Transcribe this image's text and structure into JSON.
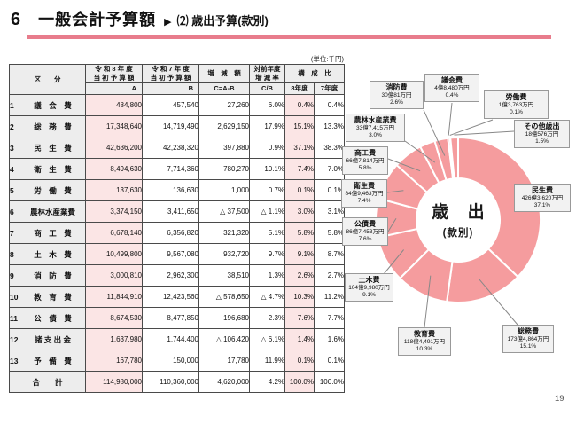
{
  "page": {
    "title_no": "6",
    "title_main": "一般会計予算額",
    "title_arrow": "▶",
    "title_sub": "⑵ 歳出予算(款別)",
    "unit_label": "(単位:千円)",
    "page_number": "19"
  },
  "table": {
    "header": {
      "category": "区　　分",
      "col_a_line1": "令 和 8 年 度",
      "col_a_line2": "当 初 予 算 額",
      "col_a_sub": "A",
      "col_b_line1": "令 和 7 年 度",
      "col_b_line2": "当 初 予 算 額",
      "col_b_sub": "B",
      "col_c": "増　減　額",
      "col_c_sub": "C=A-B",
      "col_rate_line1": "対前年度",
      "col_rate_line2": "増 減 率",
      "col_rate_sub": "C/B",
      "col_comp": "構　成　比",
      "col_comp8": "8年度",
      "col_comp7": "7年度"
    },
    "rows": [
      {
        "no": "1",
        "label": "議　会　費",
        "a": "484,800",
        "b": "457,540",
        "c": "27,260",
        "rate": "6.0%",
        "comp8": "0.4%",
        "comp7": "0.4%"
      },
      {
        "no": "2",
        "label": "総　務　費",
        "a": "17,348,640",
        "b": "14,719,490",
        "c": "2,629,150",
        "rate": "17.9%",
        "comp8": "15.1%",
        "comp7": "13.3%"
      },
      {
        "no": "3",
        "label": "民　生　費",
        "a": "42,636,200",
        "b": "42,238,320",
        "c": "397,880",
        "rate": "0.9%",
        "comp8": "37.1%",
        "comp7": "38.3%"
      },
      {
        "no": "4",
        "label": "衛　生　費",
        "a": "8,494,630",
        "b": "7,714,360",
        "c": "780,270",
        "rate": "10.1%",
        "comp8": "7.4%",
        "comp7": "7.0%"
      },
      {
        "no": "5",
        "label": "労　働　費",
        "a": "137,630",
        "b": "136,630",
        "c": "1,000",
        "rate": "0.7%",
        "comp8": "0.1%",
        "comp7": "0.1%"
      },
      {
        "no": "6",
        "label": "農林水産業費",
        "a": "3,374,150",
        "b": "3,411,650",
        "c": "△ 37,500",
        "rate": "△ 1.1%",
        "comp8": "3.0%",
        "comp7": "3.1%"
      },
      {
        "no": "7",
        "label": "商　工　費",
        "a": "6,678,140",
        "b": "6,356,820",
        "c": "321,320",
        "rate": "5.1%",
        "comp8": "5.8%",
        "comp7": "5.8%"
      },
      {
        "no": "8",
        "label": "土　木　費",
        "a": "10,499,800",
        "b": "9,567,080",
        "c": "932,720",
        "rate": "9.7%",
        "comp8": "9.1%",
        "comp7": "8.7%"
      },
      {
        "no": "9",
        "label": "消　防　費",
        "a": "3,000,810",
        "b": "2,962,300",
        "c": "38,510",
        "rate": "1.3%",
        "comp8": "2.6%",
        "comp7": "2.7%"
      },
      {
        "no": "10",
        "label": "教　育　費",
        "a": "11,844,910",
        "b": "12,423,560",
        "c": "△ 578,650",
        "rate": "△ 4.7%",
        "comp8": "10.3%",
        "comp7": "11.2%"
      },
      {
        "no": "11",
        "label": "公　債　費",
        "a": "8,674,530",
        "b": "8,477,850",
        "c": "196,680",
        "rate": "2.3%",
        "comp8": "7.6%",
        "comp7": "7.7%"
      },
      {
        "no": "12",
        "label": "諸 支 出 金",
        "a": "1,637,980",
        "b": "1,744,400",
        "c": "△ 106,420",
        "rate": "△ 6.1%",
        "comp8": "1.4%",
        "comp7": "1.6%"
      },
      {
        "no": "13",
        "label": "予　備　費",
        "a": "167,780",
        "b": "150,000",
        "c": "17,780",
        "rate": "11.9%",
        "comp8": "0.1%",
        "comp7": "0.1%"
      }
    ],
    "total": {
      "label": "合　　計",
      "a": "114,980,000",
      "b": "110,360,000",
      "c": "4,620,000",
      "rate": "4.2%",
      "comp8": "100.0%",
      "comp7": "100.0%"
    }
  },
  "chart_data": {
    "type": "pie",
    "title": "歳 出",
    "subtitle": "(款別)",
    "unit": "千円",
    "slices": [
      {
        "name": "民生費",
        "amount": "426億3,620万円",
        "percent": 37.1,
        "value": 42636200
      },
      {
        "name": "総務費",
        "amount": "173億4,864万円",
        "percent": 15.1,
        "value": 17348640
      },
      {
        "name": "教育費",
        "amount": "118億4,491万円",
        "percent": 10.3,
        "value": 11844910
      },
      {
        "name": "土木費",
        "amount": "104億9,980万円",
        "percent": 9.1,
        "value": 10499800
      },
      {
        "name": "公債費",
        "amount": "86億7,453万円",
        "percent": 7.6,
        "value": 8674530
      },
      {
        "name": "衛生費",
        "amount": "84億9,463万円",
        "percent": 7.4,
        "value": 8494630
      },
      {
        "name": "商工費",
        "amount": "66億7,814万円",
        "percent": 5.8,
        "value": 6678140
      },
      {
        "name": "農林水産業費",
        "amount": "33億7,415万円",
        "percent": 3.0,
        "value": 3374150
      },
      {
        "name": "消防費",
        "amount": "30億81万円",
        "percent": 2.6,
        "value": 3000810
      },
      {
        "name": "議会費",
        "amount": "4億8,480万円",
        "percent": 0.4,
        "value": 484800
      },
      {
        "name": "労働費",
        "amount": "1億3,763万円",
        "percent": 0.1,
        "value": 137630
      },
      {
        "name": "その他歳出",
        "amount": "18億576万円",
        "percent": 1.5,
        "value": 1805760
      }
    ],
    "colors": {
      "slice": "#F59C9E",
      "divider": "#FFFFFF",
      "leader_line": "#888888"
    }
  },
  "colors": {
    "title_bar": "#E87C8C",
    "table_pink": "#FBE5E5",
    "table_gray": "#EDEDED"
  }
}
